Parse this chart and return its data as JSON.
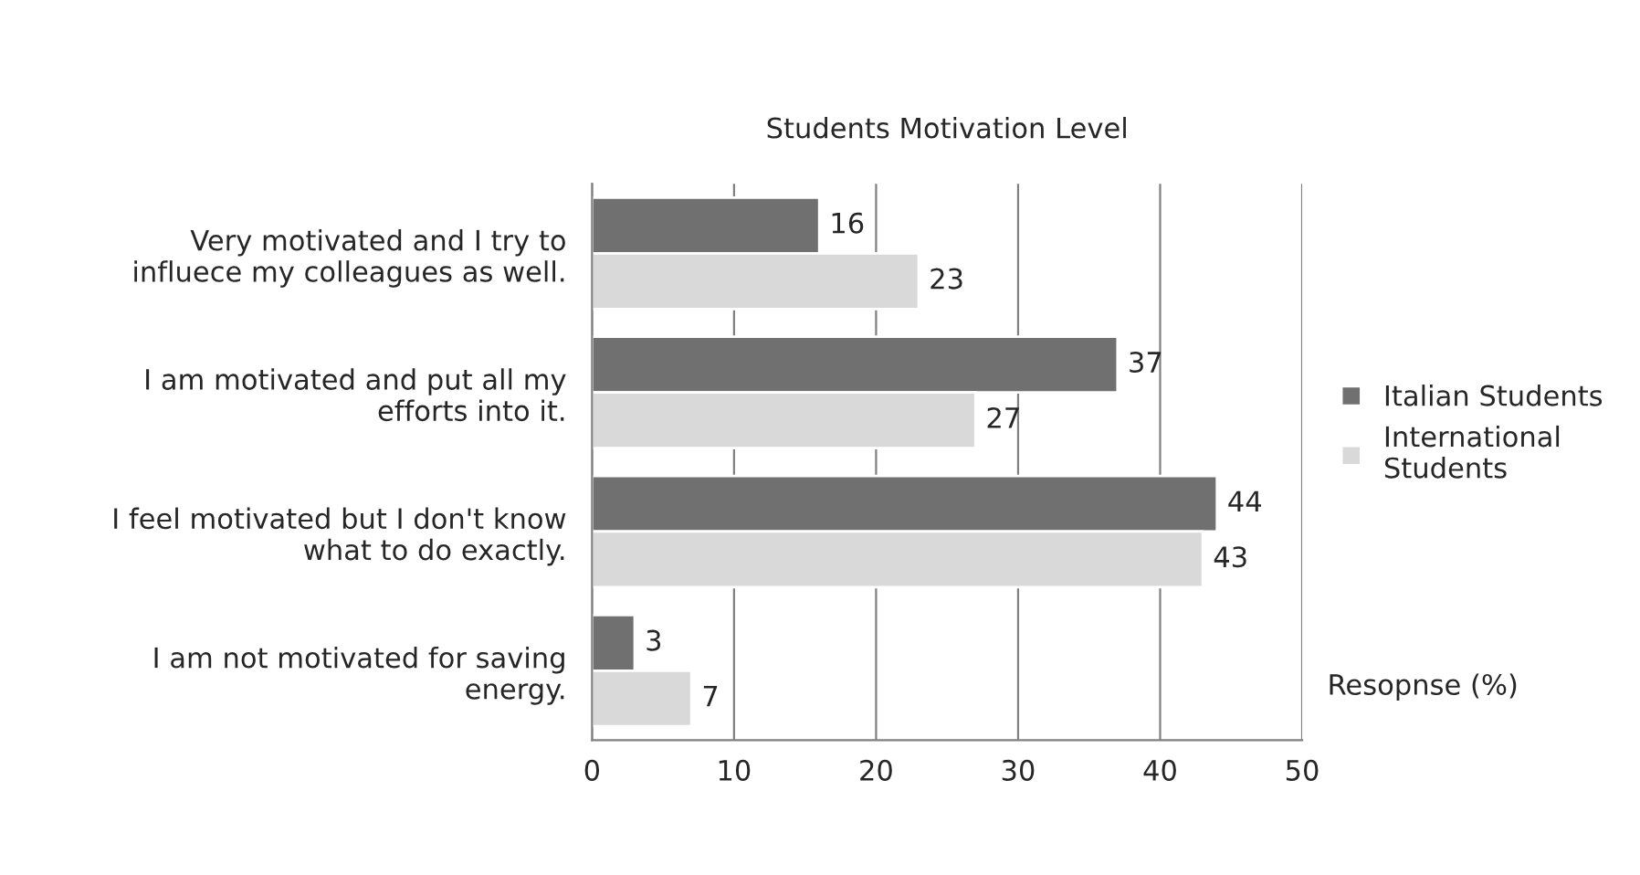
{
  "chart_data": {
    "type": "bar",
    "orientation": "horizontal",
    "title": "Students Motivation Level",
    "xlabel": "Resopnse (%)",
    "categories": [
      "Very motivated and I try to\ninfluece my colleagues as well.",
      "I am motivated and put all my\nefforts into it.",
      "I feel motivated but I don't know\nwhat to do exactly.",
      "I am not motivated for saving\nenergy."
    ],
    "series": [
      {
        "name": "Italian Students",
        "color": "#707070",
        "values": [
          16,
          37,
          44,
          3
        ]
      },
      {
        "name": "International\nStudents",
        "color": "#d9d9d9",
        "values": [
          23,
          27,
          43,
          7
        ]
      }
    ],
    "xlim": [
      0,
      50
    ],
    "xticks": [
      0,
      10,
      20,
      30,
      40,
      50
    ],
    "grid": "x",
    "legend": "right",
    "data_labels": true
  }
}
